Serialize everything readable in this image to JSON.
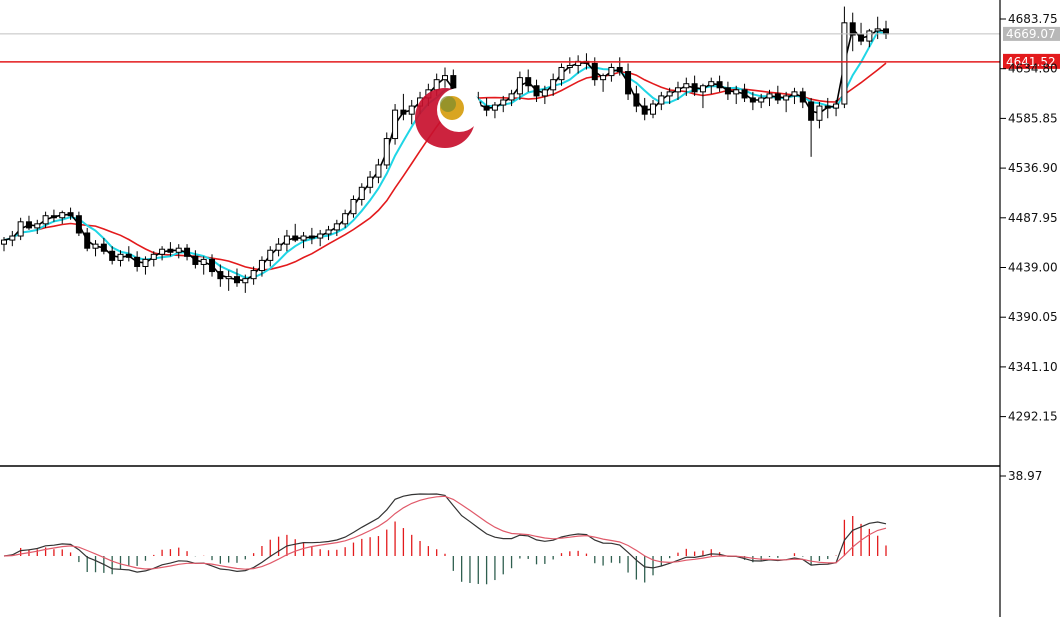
{
  "chart_data": {
    "type": "candlestick",
    "ylim": [
      4250,
      4700
    ],
    "y_ticks": [
      "4683.75",
      "4634.80",
      "4585.85",
      "4536.90",
      "4487.95",
      "4439.00",
      "4390.05",
      "4341.10",
      "4292.15"
    ],
    "current_price_label": "4669.07",
    "current_price": 4669.07,
    "resistance_label": "4641.52",
    "resistance": 4641.52,
    "macd_axis_label": "38.97",
    "ma_colors": {
      "fast": "#000000",
      "mid": "#1fd6e6",
      "slow": "#e31a1c"
    },
    "macd_colors": {
      "macd": "#333333",
      "signal": "#e05a6a",
      "hist_pos": "#e31a1c",
      "hist_neg": "#2f5f4f"
    },
    "candles": [
      [
        4462,
        4469,
        4455,
        4466
      ],
      [
        4466,
        4475,
        4460,
        4470
      ],
      [
        4470,
        4488,
        4466,
        4484
      ],
      [
        4484,
        4490,
        4476,
        4478
      ],
      [
        4478,
        4486,
        4472,
        4482
      ],
      [
        4482,
        4494,
        4478,
        4490
      ],
      [
        4490,
        4496,
        4484,
        4488
      ],
      [
        4488,
        4495,
        4482,
        4493
      ],
      [
        4493,
        4498,
        4486,
        4490
      ],
      [
        4490,
        4494,
        4470,
        4473
      ],
      [
        4473,
        4478,
        4455,
        4458
      ],
      [
        4458,
        4466,
        4450,
        4462
      ],
      [
        4462,
        4468,
        4452,
        4455
      ],
      [
        4455,
        4460,
        4442,
        4446
      ],
      [
        4446,
        4456,
        4440,
        4452
      ],
      [
        4452,
        4460,
        4445,
        4449
      ],
      [
        4449,
        4455,
        4435,
        4440
      ],
      [
        4440,
        4450,
        4432,
        4447
      ],
      [
        4447,
        4455,
        4440,
        4452
      ],
      [
        4452,
        4460,
        4446,
        4457
      ],
      [
        4457,
        4464,
        4450,
        4454
      ],
      [
        4454,
        4462,
        4448,
        4458
      ],
      [
        4458,
        4462,
        4446,
        4450
      ],
      [
        4450,
        4456,
        4438,
        4442
      ],
      [
        4442,
        4450,
        4432,
        4447
      ],
      [
        4447,
        4452,
        4430,
        4435
      ],
      [
        4435,
        4442,
        4420,
        4428
      ],
      [
        4428,
        4436,
        4416,
        4430
      ],
      [
        4430,
        4438,
        4420,
        4424
      ],
      [
        4424,
        4432,
        4414,
        4428
      ],
      [
        4428,
        4440,
        4422,
        4436
      ],
      [
        4436,
        4450,
        4430,
        4446
      ],
      [
        4446,
        4460,
        4440,
        4456
      ],
      [
        4456,
        4468,
        4450,
        4462
      ],
      [
        4462,
        4476,
        4455,
        4470
      ],
      [
        4470,
        4482,
        4464,
        4466
      ],
      [
        4466,
        4474,
        4458,
        4470
      ],
      [
        4470,
        4478,
        4462,
        4468
      ],
      [
        4468,
        4476,
        4460,
        4472
      ],
      [
        4472,
        4480,
        4466,
        4476
      ],
      [
        4476,
        4486,
        4470,
        4482
      ],
      [
        4482,
        4496,
        4478,
        4492
      ],
      [
        4492,
        4510,
        4488,
        4506
      ],
      [
        4506,
        4522,
        4500,
        4518
      ],
      [
        4518,
        4534,
        4512,
        4528
      ],
      [
        4528,
        4546,
        4522,
        4540
      ],
      [
        4540,
        4572,
        4536,
        4566
      ],
      [
        4566,
        4600,
        4560,
        4594
      ],
      [
        4594,
        4610,
        4584,
        4590
      ],
      [
        4590,
        4604,
        4580,
        4598
      ],
      [
        4598,
        4612,
        4590,
        4606
      ],
      [
        4606,
        4620,
        4598,
        4614
      ],
      [
        4614,
        4630,
        4608,
        4624
      ],
      [
        4624,
        4636,
        4616,
        4628
      ],
      [
        4628,
        4634,
        4596,
        4602
      ],
      [
        4602,
        4612,
        4588,
        4596
      ],
      [
        4596,
        4608,
        4590,
        4602
      ],
      [
        4602,
        4612,
        4594,
        4598
      ],
      [
        4598,
        4606,
        4588,
        4594
      ],
      [
        4594,
        4602,
        4586,
        4599
      ],
      [
        4599,
        4608,
        4592,
        4604
      ],
      [
        4604,
        4614,
        4598,
        4610
      ],
      [
        4610,
        4632,
        4604,
        4626
      ],
      [
        4626,
        4634,
        4612,
        4618
      ],
      [
        4618,
        4624,
        4602,
        4608
      ],
      [
        4608,
        4618,
        4600,
        4614
      ],
      [
        4614,
        4630,
        4608,
        4624
      ],
      [
        4624,
        4640,
        4618,
        4636
      ],
      [
        4636,
        4646,
        4630,
        4638
      ],
      [
        4638,
        4648,
        4630,
        4642
      ],
      [
        4642,
        4650,
        4634,
        4640
      ],
      [
        4640,
        4646,
        4618,
        4624
      ],
      [
        4624,
        4630,
        4612,
        4628
      ],
      [
        4628,
        4640,
        4622,
        4636
      ],
      [
        4636,
        4646,
        4628,
        4632
      ],
      [
        4632,
        4640,
        4604,
        4610
      ],
      [
        4610,
        4618,
        4592,
        4598
      ],
      [
        4598,
        4606,
        4584,
        4590
      ],
      [
        4590,
        4604,
        4586,
        4600
      ],
      [
        4600,
        4612,
        4594,
        4608
      ],
      [
        4608,
        4616,
        4600,
        4612
      ],
      [
        4612,
        4622,
        4604,
        4616
      ],
      [
        4616,
        4626,
        4608,
        4620
      ],
      [
        4620,
        4628,
        4608,
        4612
      ],
      [
        4612,
        4620,
        4596,
        4618
      ],
      [
        4618,
        4626,
        4610,
        4622
      ],
      [
        4622,
        4628,
        4612,
        4616
      ],
      [
        4616,
        4622,
        4604,
        4610
      ],
      [
        4610,
        4618,
        4600,
        4614
      ],
      [
        4614,
        4620,
        4602,
        4606
      ],
      [
        4606,
        4612,
        4594,
        4602
      ],
      [
        4602,
        4610,
        4596,
        4606
      ],
      [
        4606,
        4614,
        4598,
        4610
      ],
      [
        4610,
        4618,
        4600,
        4604
      ],
      [
        4604,
        4612,
        4592,
        4608
      ],
      [
        4608,
        4616,
        4600,
        4612
      ],
      [
        4612,
        4616,
        4596,
        4602
      ],
      [
        4602,
        4606,
        4548,
        4584
      ],
      [
        4584,
        4602,
        4576,
        4598
      ],
      [
        4598,
        4606,
        4586,
        4596
      ],
      [
        4596,
        4604,
        4588,
        4600
      ],
      [
        4600,
        4696,
        4596,
        4680
      ],
      [
        4680,
        4690,
        4652,
        4668
      ],
      [
        4668,
        4680,
        4658,
        4662
      ],
      [
        4662,
        4674,
        4656,
        4672
      ],
      [
        4672,
        4686,
        4664,
        4674
      ],
      [
        4674,
        4682,
        4664,
        4669
      ]
    ]
  }
}
